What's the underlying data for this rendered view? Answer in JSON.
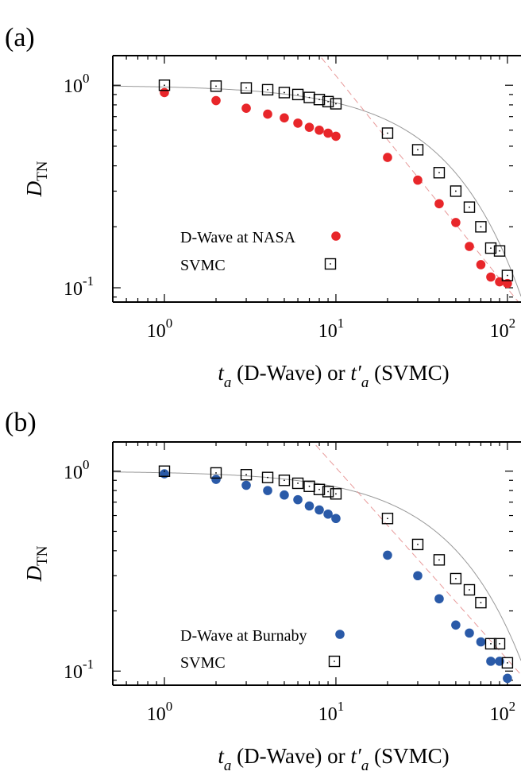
{
  "chart_data": [
    {
      "panel_label": "(a)",
      "type": "scatter",
      "scale": {
        "x": "log",
        "y": "log"
      },
      "xlim": [
        0.5,
        120
      ],
      "ylim": [
        0.085,
        1.4
      ],
      "x_ticks": [
        {
          "value": 1,
          "base": "10",
          "exp": "0"
        },
        {
          "value": 10,
          "base": "10",
          "exp": "1"
        },
        {
          "value": 100,
          "base": "10",
          "exp": "2"
        }
      ],
      "y_ticks": [
        {
          "value": 1,
          "base": "10",
          "exp": "0"
        },
        {
          "value": 0.1,
          "base": "10",
          "exp": "-1"
        }
      ],
      "xlabel": {
        "t": "t",
        "sub": "a",
        "mid": " (D-Wave) or ",
        "t2": "t′",
        "sub2": "a",
        "end": " (SVMC)"
      },
      "ylabel": {
        "main": "D",
        "sub": "TN"
      },
      "grid": false,
      "legend_position": "center-left",
      "series": [
        {
          "name": "D-Wave at NASA",
          "marker": "filled-circle",
          "color": "#e8262a",
          "x": [
            1,
            2,
            3,
            4,
            5,
            6,
            7,
            8,
            9,
            10,
            20,
            30,
            40,
            50,
            60,
            70,
            80,
            90,
            100
          ],
          "y": [
            0.92,
            0.84,
            0.77,
            0.72,
            0.69,
            0.65,
            0.62,
            0.6,
            0.58,
            0.56,
            0.44,
            0.34,
            0.26,
            0.21,
            0.16,
            0.13,
            0.113,
            0.107,
            0.105
          ]
        },
        {
          "name": "SVMC",
          "marker": "open-square",
          "color": "#000000",
          "x": [
            1,
            2,
            3,
            4,
            5,
            6,
            7,
            8,
            9,
            10,
            20,
            30,
            40,
            50,
            60,
            70,
            80,
            90,
            100
          ],
          "y": [
            1.0,
            0.99,
            0.97,
            0.95,
            0.92,
            0.9,
            0.87,
            0.85,
            0.83,
            0.81,
            0.58,
            0.48,
            0.37,
            0.3,
            0.25,
            0.2,
            0.157,
            0.152,
            0.115
          ]
        }
      ],
      "fit_lines": [
        {
          "style": "solid",
          "color": "#999999",
          "form": "exp",
          "tau": 50
        },
        {
          "style": "dashed",
          "color": "#e89a9a",
          "form": "power",
          "A": 12.5,
          "k": 1.05
        }
      ]
    },
    {
      "panel_label": "(b)",
      "type": "scatter",
      "scale": {
        "x": "log",
        "y": "log"
      },
      "xlim": [
        0.5,
        120
      ],
      "ylim": [
        0.085,
        1.4
      ],
      "x_ticks": [
        {
          "value": 1,
          "base": "10",
          "exp": "0"
        },
        {
          "value": 10,
          "base": "10",
          "exp": "1"
        },
        {
          "value": 100,
          "base": "10",
          "exp": "2"
        }
      ],
      "y_ticks": [
        {
          "value": 1,
          "base": "10",
          "exp": "0"
        },
        {
          "value": 0.1,
          "base": "10",
          "exp": "-1"
        }
      ],
      "xlabel": {
        "t": "t",
        "sub": "a",
        "mid": " (D-Wave) or ",
        "t2": "t′",
        "sub2": "a",
        "end": " (SVMC)"
      },
      "ylabel": {
        "main": "D",
        "sub": "TN"
      },
      "grid": false,
      "legend_position": "bottom-left",
      "series": [
        {
          "name": "D-Wave at Burnaby",
          "marker": "filled-circle",
          "color": "#2a5aa8",
          "x": [
            1,
            2,
            3,
            4,
            5,
            6,
            7,
            8,
            9,
            10,
            20,
            30,
            40,
            50,
            60,
            70,
            80,
            90,
            100
          ],
          "y": [
            0.97,
            0.91,
            0.85,
            0.8,
            0.76,
            0.72,
            0.67,
            0.64,
            0.61,
            0.58,
            0.38,
            0.3,
            0.23,
            0.17,
            0.155,
            0.14,
            0.112,
            0.112,
            0.092
          ]
        },
        {
          "name": "SVMC",
          "marker": "open-square",
          "color": "#000000",
          "x": [
            1,
            2,
            3,
            4,
            5,
            6,
            7,
            8,
            9,
            10,
            20,
            30,
            40,
            50,
            60,
            70,
            80,
            90,
            100
          ],
          "y": [
            1.0,
            0.98,
            0.96,
            0.93,
            0.9,
            0.87,
            0.84,
            0.81,
            0.79,
            0.77,
            0.58,
            0.43,
            0.36,
            0.29,
            0.255,
            0.22,
            0.137,
            0.137,
            0.11
          ]
        }
      ],
      "fit_lines": [
        {
          "style": "solid",
          "color": "#999999",
          "form": "exp",
          "tau": 55
        },
        {
          "style": "dashed",
          "color": "#e89a9a",
          "form": "power",
          "A": 9.5,
          "k": 0.96
        }
      ]
    }
  ]
}
